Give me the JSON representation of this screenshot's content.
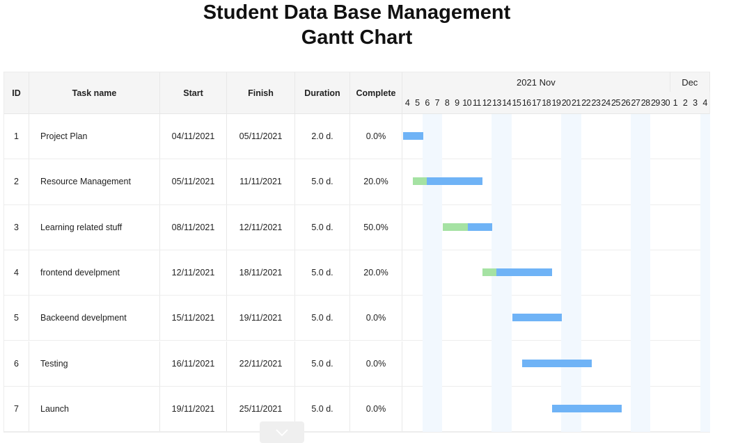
{
  "title": {
    "line1": "Student Data Base Management",
    "line2": "Gantt Chart"
  },
  "columns": {
    "id": "ID",
    "task": "Task name",
    "start": "Start",
    "finish": "Finish",
    "duration": "Duration",
    "complete": "Complete"
  },
  "timeline": {
    "months": [
      {
        "label": "2021 Nov",
        "days": 27
      },
      {
        "label": "Dec",
        "days": 4
      }
    ],
    "days": [
      "4",
      "5",
      "6",
      "7",
      "8",
      "9",
      "10",
      "11",
      "12",
      "13",
      "14",
      "15",
      "16",
      "17",
      "18",
      "19",
      "20",
      "21",
      "22",
      "23",
      "24",
      "25",
      "26",
      "27",
      "28",
      "29",
      "30",
      "1",
      "2",
      "3",
      "4"
    ],
    "weekend_day_indices": [
      2,
      3,
      9,
      10,
      16,
      17,
      23,
      24,
      30
    ]
  },
  "tasks": [
    {
      "id": "1",
      "name": "Project Plan",
      "start": "04/11/2021",
      "finish": "05/11/2021",
      "duration": "2.0 d.",
      "complete": "0.0%"
    },
    {
      "id": "2",
      "name": "Resource Management",
      "start": "05/11/2021",
      "finish": "11/11/2021",
      "duration": "5.0 d.",
      "complete": "20.0%"
    },
    {
      "id": "3",
      "name": "Learning related stuff",
      "start": "08/11/2021",
      "finish": "12/11/2021",
      "duration": "5.0 d.",
      "complete": "50.0%"
    },
    {
      "id": "4",
      "name": "frontend develpment",
      "start": "12/11/2021",
      "finish": "18/11/2021",
      "duration": "5.0 d.",
      "complete": "20.0%"
    },
    {
      "id": "5",
      "name": "Backeend develpment",
      "start": "15/11/2021",
      "finish": "19/11/2021",
      "duration": "5.0 d.",
      "complete": "0.0%"
    },
    {
      "id": "6",
      "name": "Testing",
      "start": "16/11/2021",
      "finish": "22/11/2021",
      "duration": "5.0 d.",
      "complete": "0.0%"
    },
    {
      "id": "7",
      "name": "Launch",
      "start": "19/11/2021",
      "finish": "25/11/2021",
      "duration": "5.0 d.",
      "complete": "0.0%"
    }
  ],
  "colors": {
    "bar": "#6fb3f6",
    "progress": "#a5e2a3",
    "weekend": "#f2f8fe",
    "header_bg": "#f5f5f5"
  },
  "scroll_button": {
    "icon": "chevron-down-icon"
  },
  "chart_data": {
    "type": "gantt",
    "title": "Student Data Base Management Gantt Chart",
    "x_axis": {
      "label": "2021 Nov – Dec",
      "range": [
        "2021-11-04",
        "2021-12-04"
      ],
      "unit": "day"
    },
    "categories": [
      "Project Plan",
      "Resource Management",
      "Learning related stuff",
      "frontend develpment",
      "Backeend develpment",
      "Testing",
      "Launch"
    ],
    "series": [
      {
        "name": "Project Plan",
        "start": "2021-11-04",
        "finish": "2021-11-05",
        "duration_days": 2.0,
        "complete_pct": 0.0
      },
      {
        "name": "Resource Management",
        "start": "2021-11-05",
        "finish": "2021-11-11",
        "duration_days": 5.0,
        "complete_pct": 20.0
      },
      {
        "name": "Learning related stuff",
        "start": "2021-11-08",
        "finish": "2021-11-12",
        "duration_days": 5.0,
        "complete_pct": 50.0
      },
      {
        "name": "frontend develpment",
        "start": "2021-11-12",
        "finish": "2021-11-18",
        "duration_days": 5.0,
        "complete_pct": 20.0
      },
      {
        "name": "Backeend develpment",
        "start": "2021-11-15",
        "finish": "2021-11-19",
        "duration_days": 5.0,
        "complete_pct": 0.0
      },
      {
        "name": "Testing",
        "start": "2021-11-16",
        "finish": "2021-11-22",
        "duration_days": 5.0,
        "complete_pct": 0.0
      },
      {
        "name": "Launch",
        "start": "2021-11-19",
        "finish": "2021-11-25",
        "duration_days": 5.0,
        "complete_pct": 0.0
      }
    ],
    "bar_layout_days": [
      {
        "offset": 0,
        "span": 2
      },
      {
        "offset": 1,
        "span": 7
      },
      {
        "offset": 4,
        "span": 5
      },
      {
        "offset": 8,
        "span": 7
      },
      {
        "offset": 11,
        "span": 5
      },
      {
        "offset": 12,
        "span": 7
      },
      {
        "offset": 15,
        "span": 7
      }
    ],
    "legend": [],
    "grid": true
  }
}
